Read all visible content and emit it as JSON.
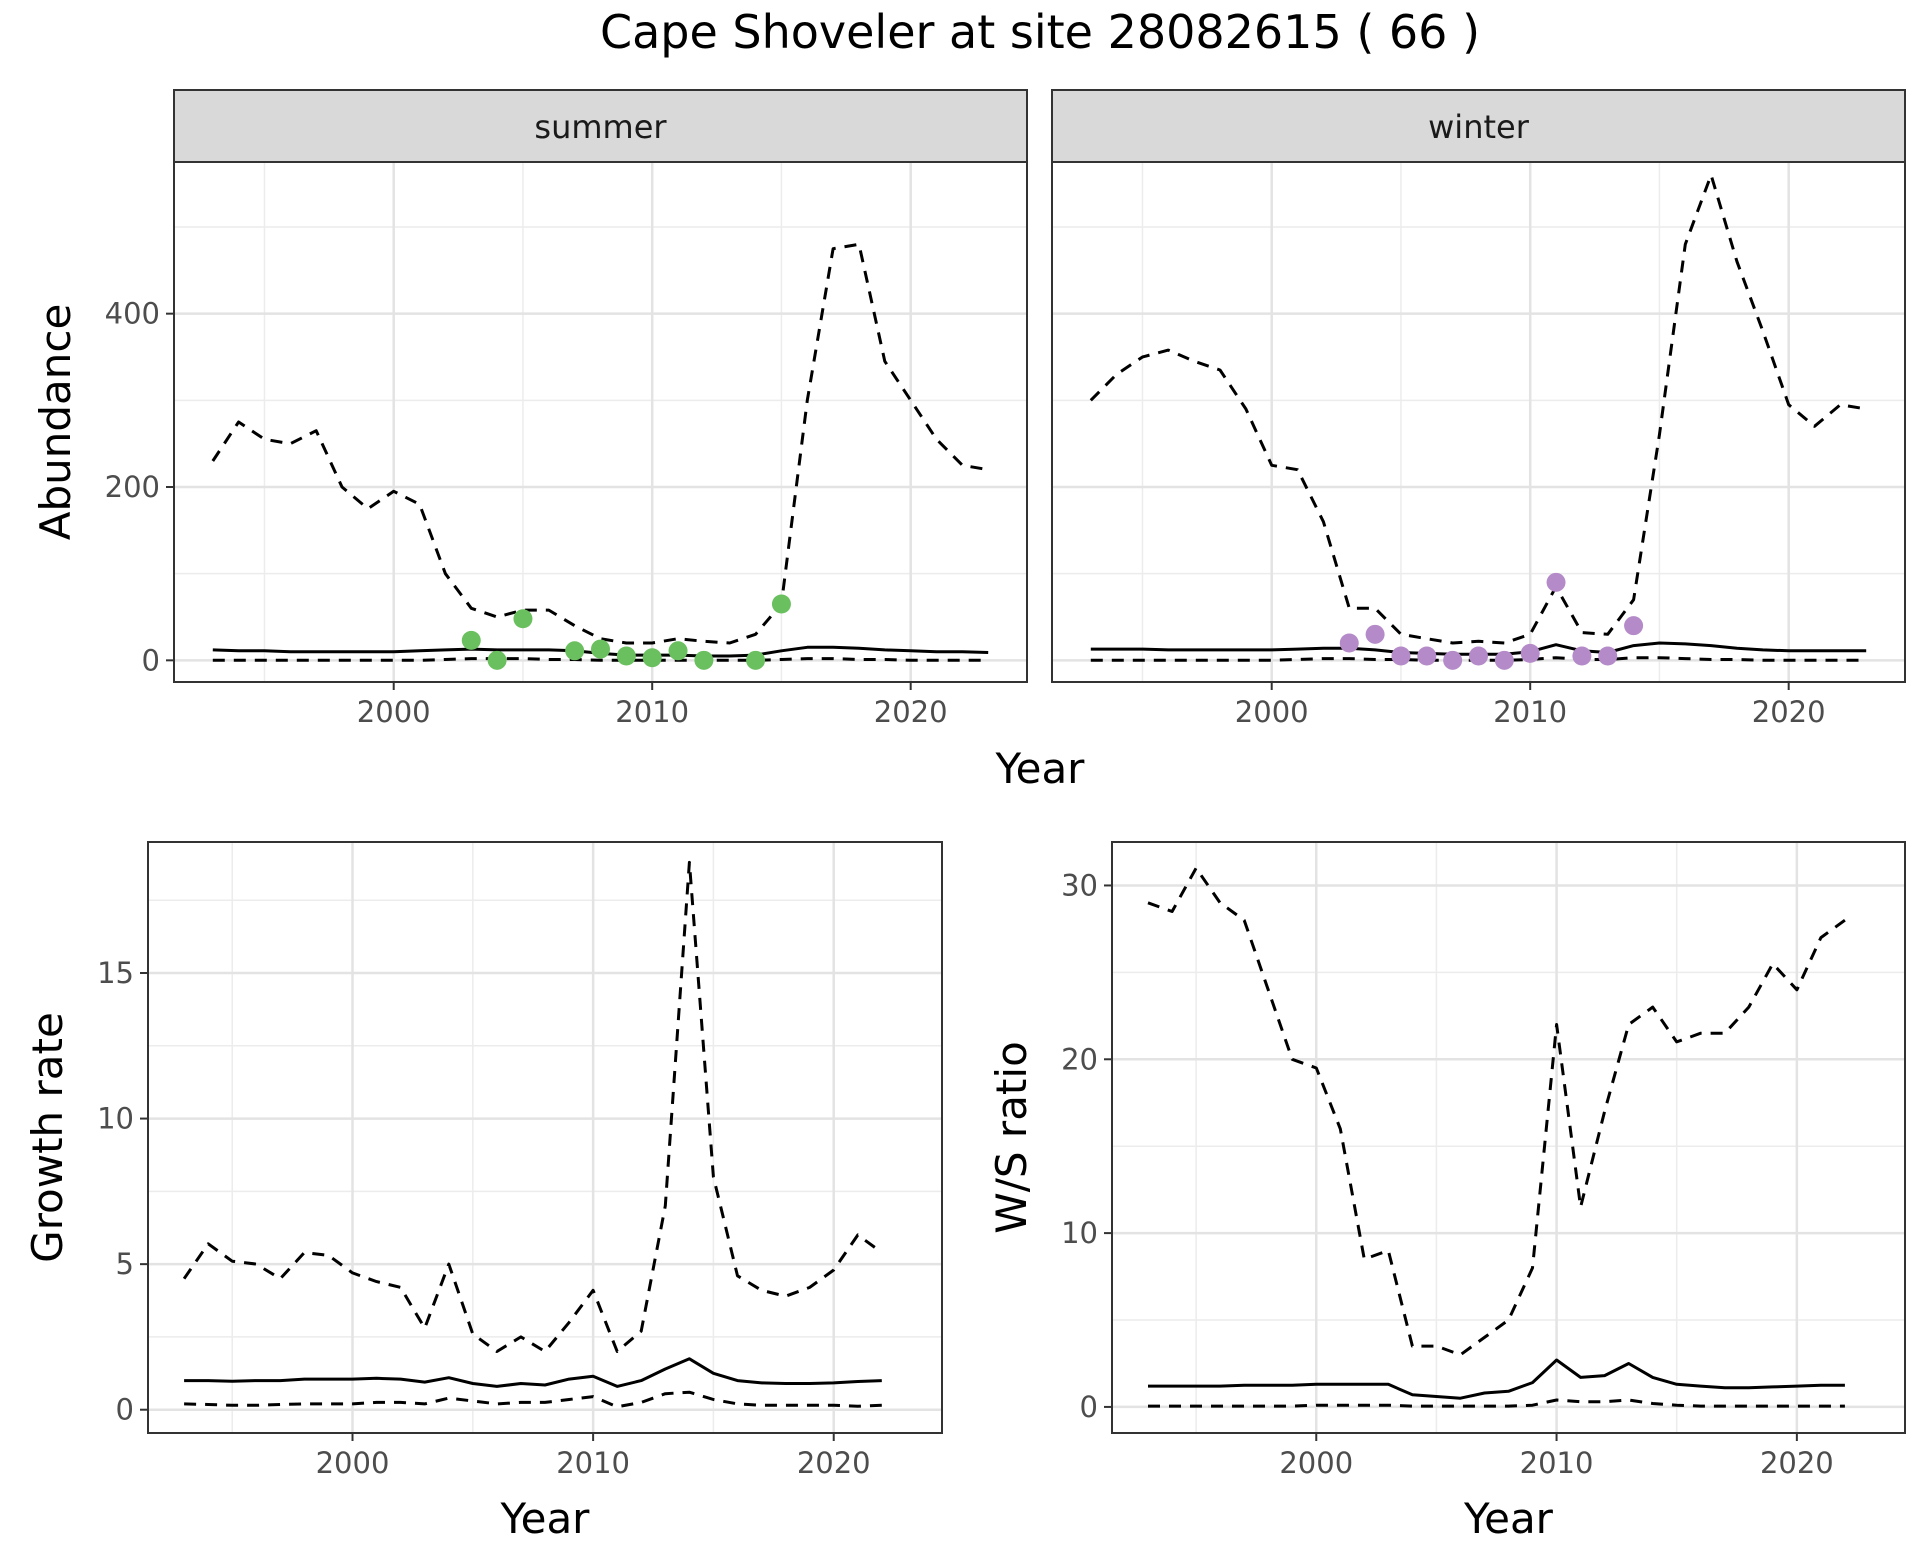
{
  "figure": {
    "title": "Cape Shoveler at site 28082615 ( 66 )"
  },
  "chart_data": [
    {
      "type": "line",
      "facet": "summer",
      "xlabel": "Year",
      "ylabel": "Abundance",
      "xlim": [
        1991.5,
        2024.5
      ],
      "ylim": [
        -25,
        575
      ],
      "xticks": [
        2000,
        2010,
        2020
      ],
      "yticks": [
        0,
        200,
        400
      ],
      "grid": true,
      "series": [
        {
          "role": "upper",
          "style": "dashed",
          "x": [
            1993,
            1994,
            1995,
            1996,
            1997,
            1998,
            1999,
            2000,
            2001,
            2002,
            2003,
            2004,
            2005,
            2006,
            2007,
            2008,
            2009,
            2010,
            2011,
            2012,
            2013,
            2014,
            2015,
            2016,
            2017,
            2018,
            2019,
            2020,
            2021,
            2022,
            2023
          ],
          "y": [
            230,
            275,
            255,
            250,
            265,
            200,
            175,
            195,
            180,
            100,
            60,
            50,
            58,
            58,
            40,
            25,
            20,
            20,
            25,
            22,
            20,
            30,
            65,
            300,
            475,
            480,
            345,
            300,
            255,
            225,
            220
          ]
        },
        {
          "role": "mean",
          "style": "solid",
          "x": [
            1993,
            1994,
            1995,
            1996,
            1997,
            1998,
            1999,
            2000,
            2001,
            2002,
            2003,
            2004,
            2005,
            2006,
            2007,
            2008,
            2009,
            2010,
            2011,
            2012,
            2013,
            2014,
            2015,
            2016,
            2017,
            2018,
            2019,
            2020,
            2021,
            2022,
            2023
          ],
          "y": [
            12,
            11,
            11,
            10,
            10,
            10,
            10,
            10,
            11,
            12,
            13,
            12,
            12,
            12,
            11,
            8,
            6,
            6,
            6,
            5,
            5,
            6,
            11,
            15,
            15,
            14,
            12,
            11,
            10,
            10,
            9
          ]
        },
        {
          "role": "lower",
          "style": "dashed",
          "x": [
            1993,
            1994,
            1995,
            1996,
            1997,
            1998,
            1999,
            2000,
            2001,
            2002,
            2003,
            2004,
            2005,
            2006,
            2007,
            2008,
            2009,
            2010,
            2011,
            2012,
            2013,
            2014,
            2015,
            2016,
            2017,
            2018,
            2019,
            2020,
            2021,
            2022,
            2023
          ],
          "y": [
            0,
            0,
            0,
            0,
            0,
            0,
            0,
            0,
            0,
            1,
            2,
            2,
            2,
            1,
            1,
            0,
            0,
            0,
            0,
            0,
            0,
            0,
            1,
            2,
            2,
            1,
            1,
            0,
            0,
            0,
            0
          ]
        }
      ],
      "points": {
        "color": "#6abf5e",
        "x": [
          2003,
          2004,
          2005,
          2007,
          2008,
          2009,
          2010,
          2011,
          2012,
          2014,
          2015
        ],
        "y": [
          23,
          0,
          48,
          11,
          13,
          5,
          3,
          11,
          0,
          0,
          65
        ]
      }
    },
    {
      "type": "line",
      "facet": "winter",
      "xlabel": "Year",
      "ylabel": "Abundance",
      "xlim": [
        1991.5,
        2024.5
      ],
      "ylim": [
        -25,
        575
      ],
      "xticks": [
        2000,
        2010,
        2020
      ],
      "yticks": [
        0,
        200,
        400
      ],
      "grid": true,
      "series": [
        {
          "role": "upper",
          "style": "dashed",
          "x": [
            1993,
            1994,
            1995,
            1996,
            1997,
            1998,
            1999,
            2000,
            2001,
            2002,
            2003,
            2004,
            2005,
            2006,
            2007,
            2008,
            2009,
            2010,
            2011,
            2012,
            2013,
            2014,
            2015,
            2016,
            2017,
            2018,
            2019,
            2020,
            2021,
            2022,
            2023
          ],
          "y": [
            300,
            330,
            350,
            358,
            345,
            335,
            290,
            225,
            220,
            160,
            60,
            60,
            30,
            25,
            20,
            22,
            20,
            30,
            85,
            32,
            30,
            70,
            260,
            480,
            560,
            460,
            380,
            295,
            270,
            295,
            290
          ]
        },
        {
          "role": "mean",
          "style": "solid",
          "x": [
            1993,
            1994,
            1995,
            1996,
            1997,
            1998,
            1999,
            2000,
            2001,
            2002,
            2003,
            2004,
            2005,
            2006,
            2007,
            2008,
            2009,
            2010,
            2011,
            2012,
            2013,
            2014,
            2015,
            2016,
            2017,
            2018,
            2019,
            2020,
            2021,
            2022,
            2023
          ],
          "y": [
            13,
            13,
            13,
            12,
            12,
            12,
            12,
            12,
            13,
            14,
            14,
            12,
            9,
            8,
            7,
            7,
            7,
            10,
            18,
            11,
            9,
            17,
            20,
            19,
            17,
            14,
            12,
            11,
            11,
            11,
            11
          ]
        },
        {
          "role": "lower",
          "style": "dashed",
          "x": [
            1993,
            1994,
            1995,
            1996,
            1997,
            1998,
            1999,
            2000,
            2001,
            2002,
            2003,
            2004,
            2005,
            2006,
            2007,
            2008,
            2009,
            2010,
            2011,
            2012,
            2013,
            2014,
            2015,
            2016,
            2017,
            2018,
            2019,
            2020,
            2021,
            2022,
            2023
          ],
          "y": [
            0,
            0,
            0,
            0,
            0,
            0,
            0,
            0,
            1,
            2,
            2,
            1,
            1,
            0,
            0,
            0,
            0,
            1,
            3,
            1,
            1,
            3,
            3,
            2,
            1,
            1,
            0,
            0,
            0,
            0,
            0
          ]
        }
      ],
      "points": {
        "color": "#b48ac8",
        "x": [
          2003,
          2004,
          2005,
          2006,
          2007,
          2008,
          2009,
          2010,
          2011,
          2012,
          2013,
          2014
        ],
        "y": [
          20,
          30,
          5,
          5,
          0,
          5,
          0,
          8,
          90,
          5,
          5,
          40
        ]
      }
    },
    {
      "type": "line",
      "xlabel": "Year",
      "ylabel": "Growth rate",
      "xlim": [
        1991.5,
        2024.5
      ],
      "ylim": [
        -0.8,
        19.5
      ],
      "xticks": [
        2000,
        2010,
        2020
      ],
      "yticks": [
        0,
        5,
        10,
        15
      ],
      "grid": true,
      "series": [
        {
          "role": "upper",
          "style": "dashed",
          "x": [
            1993,
            1994,
            1995,
            1996,
            1997,
            1998,
            1999,
            2000,
            2001,
            2002,
            2003,
            2004,
            2005,
            2006,
            2007,
            2008,
            2009,
            2010,
            2011,
            2012,
            2013,
            2014,
            2015,
            2016,
            2017,
            2018,
            2019,
            2020,
            2021,
            2022
          ],
          "y": [
            4.5,
            5.7,
            5.1,
            5.0,
            4.5,
            5.4,
            5.3,
            4.7,
            4.4,
            4.2,
            2.8,
            5.0,
            2.6,
            2.0,
            2.5,
            2.0,
            3.0,
            4.1,
            2.0,
            2.7,
            7.0,
            18.8,
            8.0,
            4.6,
            4.1,
            3.9,
            4.2,
            4.8,
            6.0,
            5.4
          ]
        },
        {
          "role": "mean",
          "style": "solid",
          "x": [
            1993,
            1994,
            1995,
            1996,
            1997,
            1998,
            1999,
            2000,
            2001,
            2002,
            2003,
            2004,
            2005,
            2006,
            2007,
            2008,
            2009,
            2010,
            2011,
            2012,
            2013,
            2014,
            2015,
            2016,
            2017,
            2018,
            2019,
            2020,
            2021,
            2022
          ],
          "y": [
            1.0,
            1.0,
            0.98,
            1.0,
            1.0,
            1.05,
            1.05,
            1.05,
            1.08,
            1.05,
            0.95,
            1.1,
            0.9,
            0.8,
            0.9,
            0.85,
            1.05,
            1.15,
            0.8,
            1.0,
            1.4,
            1.75,
            1.25,
            1.0,
            0.92,
            0.9,
            0.9,
            0.92,
            0.97,
            1.0
          ]
        },
        {
          "role": "lower",
          "style": "dashed",
          "x": [
            1993,
            1994,
            1995,
            1996,
            1997,
            1998,
            1999,
            2000,
            2001,
            2002,
            2003,
            2004,
            2005,
            2006,
            2007,
            2008,
            2009,
            2010,
            2011,
            2012,
            2013,
            2014,
            2015,
            2016,
            2017,
            2018,
            2019,
            2020,
            2021,
            2022
          ],
          "y": [
            0.2,
            0.18,
            0.15,
            0.15,
            0.18,
            0.2,
            0.2,
            0.2,
            0.25,
            0.25,
            0.2,
            0.4,
            0.3,
            0.2,
            0.25,
            0.25,
            0.35,
            0.45,
            0.1,
            0.25,
            0.55,
            0.6,
            0.35,
            0.2,
            0.15,
            0.15,
            0.15,
            0.15,
            0.12,
            0.15
          ]
        }
      ]
    },
    {
      "type": "line",
      "xlabel": "Year",
      "ylabel": "W/S ratio",
      "xlim": [
        1991.5,
        2024.5
      ],
      "ylim": [
        -1.5,
        32.5
      ],
      "xticks": [
        2000,
        2010,
        2020
      ],
      "yticks": [
        0,
        10,
        20,
        30
      ],
      "grid": true,
      "series": [
        {
          "role": "upper",
          "style": "dashed",
          "x": [
            1993,
            1994,
            1995,
            1996,
            1997,
            1998,
            1999,
            2000,
            2001,
            2002,
            2003,
            2004,
            2005,
            2006,
            2007,
            2008,
            2009,
            2010,
            2011,
            2012,
            2013,
            2014,
            2015,
            2016,
            2017,
            2018,
            2019,
            2020,
            2021,
            2022
          ],
          "y": [
            29,
            28.5,
            31,
            29,
            28,
            24,
            20,
            19.5,
            16,
            8.5,
            9,
            3.5,
            3.5,
            3,
            4,
            5,
            8,
            22,
            11.5,
            17,
            22,
            23,
            21,
            21.5,
            21.5,
            23,
            25.5,
            24,
            27,
            28
          ]
        },
        {
          "role": "mean",
          "style": "solid",
          "x": [
            1993,
            1994,
            1995,
            1996,
            1997,
            1998,
            1999,
            2000,
            2001,
            2002,
            2003,
            2004,
            2005,
            2006,
            2007,
            2008,
            2009,
            2010,
            2011,
            2012,
            2013,
            2014,
            2015,
            2016,
            2017,
            2018,
            2019,
            2020,
            2021,
            2022
          ],
          "y": [
            1.2,
            1.2,
            1.2,
            1.2,
            1.25,
            1.25,
            1.25,
            1.3,
            1.3,
            1.3,
            1.3,
            0.7,
            0.6,
            0.5,
            0.8,
            0.9,
            1.4,
            2.7,
            1.7,
            1.8,
            2.5,
            1.7,
            1.3,
            1.2,
            1.1,
            1.1,
            1.15,
            1.2,
            1.25,
            1.25
          ]
        },
        {
          "role": "lower",
          "style": "dashed",
          "x": [
            1993,
            1994,
            1995,
            1996,
            1997,
            1998,
            1999,
            2000,
            2001,
            2002,
            2003,
            2004,
            2005,
            2006,
            2007,
            2008,
            2009,
            2010,
            2011,
            2012,
            2013,
            2014,
            2015,
            2016,
            2017,
            2018,
            2019,
            2020,
            2021,
            2022
          ],
          "y": [
            0.05,
            0.05,
            0.05,
            0.05,
            0.05,
            0.05,
            0.05,
            0.1,
            0.1,
            0.1,
            0.1,
            0.05,
            0.05,
            0.05,
            0.05,
            0.05,
            0.1,
            0.4,
            0.3,
            0.3,
            0.4,
            0.2,
            0.1,
            0.05,
            0.05,
            0.05,
            0.05,
            0.05,
            0.05,
            0.05
          ]
        }
      ]
    }
  ]
}
